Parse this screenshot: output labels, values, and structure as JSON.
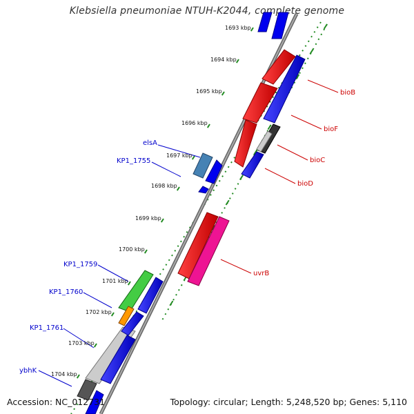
{
  "title": "Klebsiella pneumoniae NTUH-K2044, complete genome",
  "footer": {
    "accession": "Accession: NC_012731",
    "topology": "Topology: circular; Length: 5,248,520 bp; Genes: 5,110"
  },
  "colors": {
    "forward_cds": "#0000ee",
    "reverse_cds": "#ee0000",
    "rna": "#ee1493",
    "left_label": "#0000cc",
    "right_label": "#cc0000",
    "tick": "#228b22",
    "backbone": "#777777"
  },
  "ticks": [
    "1693 kbp",
    "1694 kbp",
    "1695 kbp",
    "1696 kbp",
    "1697 kbp",
    "1698 kbp",
    "1699 kbp",
    "1700 kbp",
    "1701 kbp",
    "1702 kbp",
    "1703 kbp",
    "1704 kbp"
  ],
  "gene_labels_left": [
    "elsA",
    "KP1_1755",
    "KP1_1759",
    "KP1_1760",
    "KP1_1761",
    "ybhK"
  ],
  "gene_labels_right": [
    "bioB",
    "bioF",
    "bioC",
    "bioD",
    "uvrB"
  ]
}
